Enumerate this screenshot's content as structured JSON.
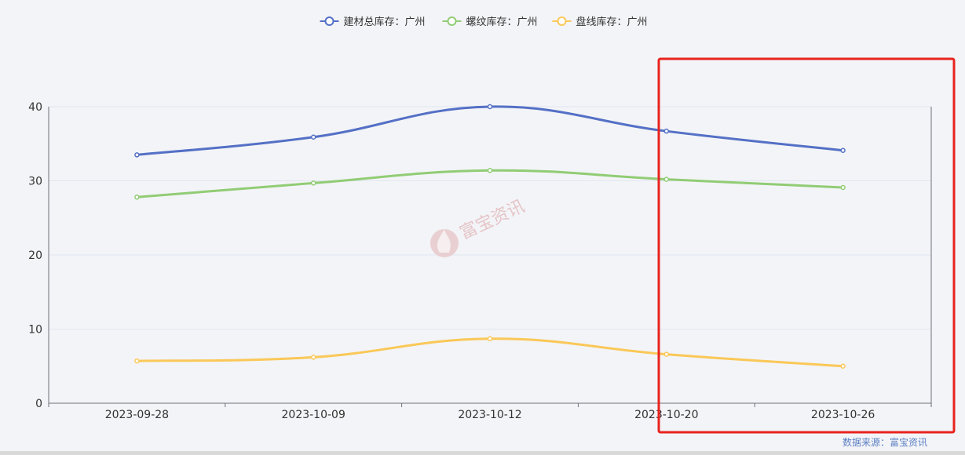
{
  "chart_data": {
    "type": "line",
    "categories": [
      "2023-09-28",
      "2023-10-09",
      "2023-10-12",
      "2023-10-20",
      "2023-10-26"
    ],
    "series": [
      {
        "name": "建材总库存：广州",
        "color": "#5470c6",
        "values": [
          33.5,
          35.9,
          40.0,
          36.7,
          34.1
        ]
      },
      {
        "name": "螺纹库存：广州",
        "color": "#91cc75",
        "values": [
          27.8,
          29.7,
          31.4,
          30.2,
          29.1
        ]
      },
      {
        "name": "盘线库存：广州",
        "color": "#fac858",
        "values": [
          5.7,
          6.2,
          8.7,
          6.6,
          5.0
        ]
      }
    ],
    "yticks": [
      0,
      10,
      20,
      30,
      40
    ],
    "ylim": [
      0,
      40
    ],
    "legend_position": "top-center",
    "grid": true
  },
  "watermark": {
    "text": "富宝资讯"
  },
  "source": {
    "text": "数据来源：富宝资讯"
  },
  "highlight_color": "#e8231f"
}
